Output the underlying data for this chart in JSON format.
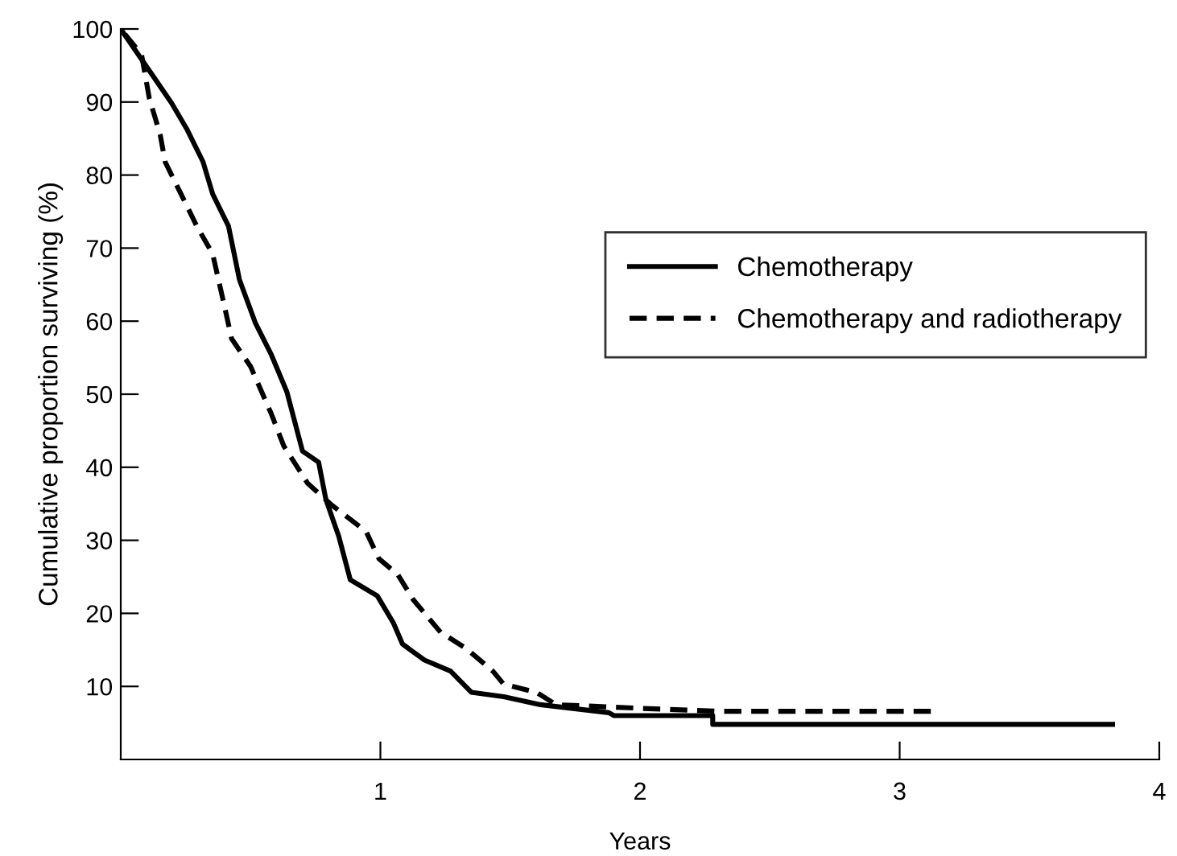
{
  "chart_data": {
    "type": "line",
    "xlabel": "Years",
    "ylabel": "Cumulative proportion surviving (%)",
    "xlim": [
      0,
      4
    ],
    "ylim": [
      0,
      100
    ],
    "xticks": [
      1,
      2,
      3,
      4
    ],
    "yticks": [
      10,
      20,
      30,
      40,
      50,
      60,
      70,
      80,
      90,
      100
    ],
    "grid": false,
    "legend": "top right",
    "marker": "none",
    "series": [
      {
        "name": "Chemotherapy",
        "color": "#000000",
        "line_style": "solid",
        "x": [
          0,
          0.11,
          0.195,
          0.256,
          0.317,
          0.354,
          0.415,
          0.457,
          0.518,
          0.58,
          0.64,
          0.7,
          0.762,
          0.79,
          0.84,
          0.884,
          0.988,
          1.05,
          1.085,
          1.17,
          1.27,
          1.35,
          1.475,
          1.616,
          1.88,
          1.9,
          2.28,
          2.28,
          3.82
        ],
        "values": [
          100,
          94.3,
          89.9,
          86.2,
          81.8,
          77.4,
          73,
          65.7,
          59.8,
          55.4,
          50.3,
          42.2,
          40.7,
          35.6,
          30.5,
          24.6,
          22.4,
          18.7,
          15.8,
          13.6,
          12.1,
          9.2,
          8.6,
          7.5,
          6.4,
          6.0,
          6.0,
          4.8,
          4.8
        ]
      },
      {
        "name": "Chemotherapy and radiotherapy",
        "color": "#000000",
        "line_style": "dashed",
        "x": [
          0,
          0.08,
          0.11,
          0.152,
          0.171,
          0.232,
          0.293,
          0.354,
          0.396,
          0.427,
          0.5,
          0.58,
          0.628,
          0.72,
          0.81,
          0.945,
          0.994,
          1.067,
          1.128,
          1.232,
          1.33,
          1.433,
          1.475,
          1.6,
          1.677,
          2.0,
          2.3,
          3.12
        ],
        "values": [
          100,
          96.5,
          90.5,
          85.5,
          81.8,
          77.4,
          73,
          69.2,
          62.6,
          57.6,
          53.8,
          47.3,
          42.9,
          37.8,
          34.9,
          31.2,
          27.5,
          25.3,
          21.8,
          17.4,
          15.2,
          12.1,
          10.3,
          9.2,
          7.5,
          7.0,
          6.6,
          6.6
        ]
      }
    ]
  }
}
